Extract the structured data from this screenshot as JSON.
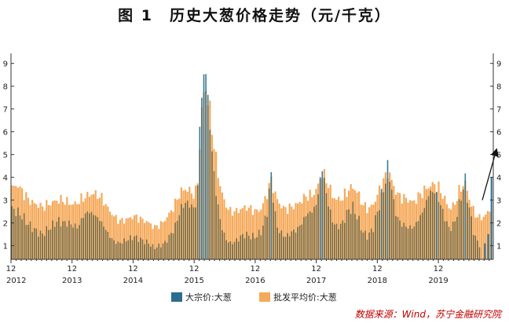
{
  "title": "图 1　历史大葱价格走势（元/千克）",
  "source": "数据来源：Wind，苏宁金融研究院",
  "colors": {
    "wholesale": "#f5a95a",
    "bulk": "#2b6e8f",
    "bulk_overlap": "#6d6238",
    "axis": "#333333"
  },
  "chart_data": {
    "type": "bar",
    "title": "图 1　历史大葱价格走势（元/千克）",
    "ylim": [
      0.4,
      9.3
    ],
    "yticks": [
      1,
      2,
      3,
      4,
      5,
      6,
      7,
      8,
      9
    ],
    "x_range": [
      2012.0,
      2019.9
    ],
    "years": [
      "2012",
      "2013",
      "2014",
      "2015",
      "2016",
      "2017",
      "2018",
      "2019"
    ],
    "month_label": "12",
    "legend": [
      "大宗价:大葱",
      "批发平均价:大葱"
    ],
    "series": [
      {
        "name": "批发平均价:大葱",
        "x": [
          2012.0,
          2012.08,
          2012.17,
          2012.25,
          2012.33,
          2012.42,
          2012.5,
          2012.58,
          2012.67,
          2012.75,
          2012.83,
          2012.92,
          2013.0,
          2013.08,
          2013.17,
          2013.25,
          2013.33,
          2013.42,
          2013.5,
          2013.58,
          2013.67,
          2013.75,
          2013.83,
          2013.92,
          2014.0,
          2014.08,
          2014.17,
          2014.25,
          2014.33,
          2014.42,
          2014.5,
          2014.58,
          2014.67,
          2014.75,
          2014.83,
          2014.92,
          2015.0,
          2015.04,
          2015.08,
          2015.13,
          2015.17,
          2015.25,
          2015.33,
          2015.42,
          2015.5,
          2015.58,
          2015.67,
          2015.75,
          2015.83,
          2015.92,
          2016.0,
          2016.08,
          2016.17,
          2016.25,
          2016.33,
          2016.42,
          2016.5,
          2016.58,
          2016.67,
          2016.75,
          2016.83,
          2016.92,
          2017.0,
          2017.08,
          2017.17,
          2017.25,
          2017.33,
          2017.42,
          2017.5,
          2017.58,
          2017.67,
          2017.75,
          2017.83,
          2017.92,
          2018.0,
          2018.08,
          2018.17,
          2018.25,
          2018.33,
          2018.42,
          2018.5,
          2018.58,
          2018.67,
          2018.75,
          2018.83,
          2018.92,
          2019.0,
          2019.08,
          2019.17,
          2019.25,
          2019.33,
          2019.42,
          2019.5,
          2019.58,
          2019.67,
          2019.75,
          2019.83
        ],
        "values": [
          3.5,
          3.7,
          3.4,
          3.1,
          2.9,
          2.8,
          2.7,
          2.8,
          2.9,
          3.0,
          3.0,
          2.9,
          2.8,
          2.9,
          3.1,
          3.2,
          3.3,
          3.2,
          3.0,
          2.6,
          2.3,
          2.1,
          2.1,
          2.2,
          2.3,
          2.2,
          2.1,
          2.0,
          1.8,
          1.9,
          2.1,
          2.4,
          2.8,
          3.3,
          3.5,
          3.4,
          3.2,
          3.7,
          5.5,
          7.6,
          8.0,
          6.8,
          5.0,
          3.5,
          2.8,
          2.5,
          2.5,
          2.6,
          2.7,
          2.6,
          2.5,
          2.6,
          3.2,
          3.9,
          3.1,
          2.7,
          2.6,
          2.7,
          2.8,
          3.0,
          3.2,
          3.2,
          3.5,
          4.2,
          3.8,
          3.2,
          3.0,
          3.1,
          3.4,
          3.6,
          3.3,
          2.8,
          2.6,
          2.8,
          3.3,
          3.8,
          4.3,
          3.6,
          3.2,
          3.1,
          3.0,
          2.9,
          3.2,
          3.4,
          3.6,
          3.7,
          3.5,
          3.1,
          2.6,
          2.8,
          3.4,
          3.8,
          3.0,
          2.4,
          2.2,
          2.3,
          2.6
        ]
      },
      {
        "name": "大宗价:大葱",
        "x": [
          2012.0,
          2012.08,
          2012.17,
          2012.25,
          2012.33,
          2012.42,
          2012.5,
          2012.58,
          2012.67,
          2012.75,
          2012.83,
          2012.92,
          2013.0,
          2013.08,
          2013.17,
          2013.25,
          2013.33,
          2013.42,
          2013.5,
          2013.58,
          2013.67,
          2013.75,
          2013.83,
          2013.92,
          2014.0,
          2014.08,
          2014.17,
          2014.25,
          2014.33,
          2014.42,
          2014.5,
          2014.58,
          2014.67,
          2014.75,
          2014.83,
          2014.92,
          2015.0,
          2015.04,
          2015.08,
          2015.13,
          2015.17,
          2015.25,
          2015.33,
          2015.42,
          2015.5,
          2015.58,
          2015.67,
          2015.75,
          2015.83,
          2015.92,
          2016.0,
          2016.08,
          2016.17,
          2016.25,
          2016.33,
          2016.42,
          2016.5,
          2016.58,
          2016.67,
          2016.75,
          2016.83,
          2016.92,
          2017.0,
          2017.08,
          2017.17,
          2017.25,
          2017.33,
          2017.42,
          2017.5,
          2017.58,
          2017.67,
          2017.75,
          2017.83,
          2017.92,
          2018.0,
          2018.08,
          2018.17,
          2018.25,
          2018.33,
          2018.42,
          2018.5,
          2018.58,
          2018.67,
          2018.75,
          2018.83,
          2018.92,
          2019.0,
          2019.08,
          2019.17,
          2019.25,
          2019.33,
          2019.42,
          2019.5,
          2019.58,
          2019.67,
          2019.75,
          2019.83,
          2019.57,
          2019.63,
          2019.69,
          2019.74,
          2019.79,
          2019.84,
          2019.88
        ],
        "values": [
          2.6,
          2.5,
          2.3,
          2.0,
          1.8,
          1.6,
          1.5,
          1.7,
          1.9,
          2.1,
          2.0,
          2.0,
          1.9,
          1.8,
          2.3,
          2.5,
          2.4,
          2.2,
          1.9,
          1.5,
          1.2,
          1.1,
          1.2,
          1.3,
          1.4,
          1.3,
          1.2,
          1.1,
          0.9,
          1.0,
          1.1,
          1.4,
          1.8,
          2.5,
          2.9,
          2.8,
          2.6,
          3.2,
          6.5,
          8.1,
          9.0,
          6.0,
          3.6,
          2.0,
          1.3,
          1.1,
          1.2,
          1.4,
          1.5,
          1.4,
          1.4,
          1.6,
          2.3,
          4.1,
          1.9,
          1.5,
          1.4,
          1.6,
          1.7,
          2.0,
          2.4,
          2.5,
          2.9,
          4.5,
          3.0,
          2.1,
          1.8,
          2.0,
          2.5,
          2.7,
          2.2,
          1.6,
          1.4,
          1.8,
          2.6,
          3.4,
          4.5,
          2.9,
          2.1,
          1.9,
          1.8,
          1.8,
          2.2,
          2.6,
          3.3,
          3.4,
          3.0,
          2.3,
          1.7,
          2.0,
          2.8,
          3.9,
          2.5,
          1.4,
          1.0,
          1.1,
          1.6,
          2.8,
          3.4,
          3.6,
          3.7,
          3.3,
          3.9,
          4.7
        ]
      }
    ],
    "arrow": {
      "from": [
        2019.72,
        3.0
      ],
      "to": [
        2019.95,
        5.2
      ]
    }
  }
}
